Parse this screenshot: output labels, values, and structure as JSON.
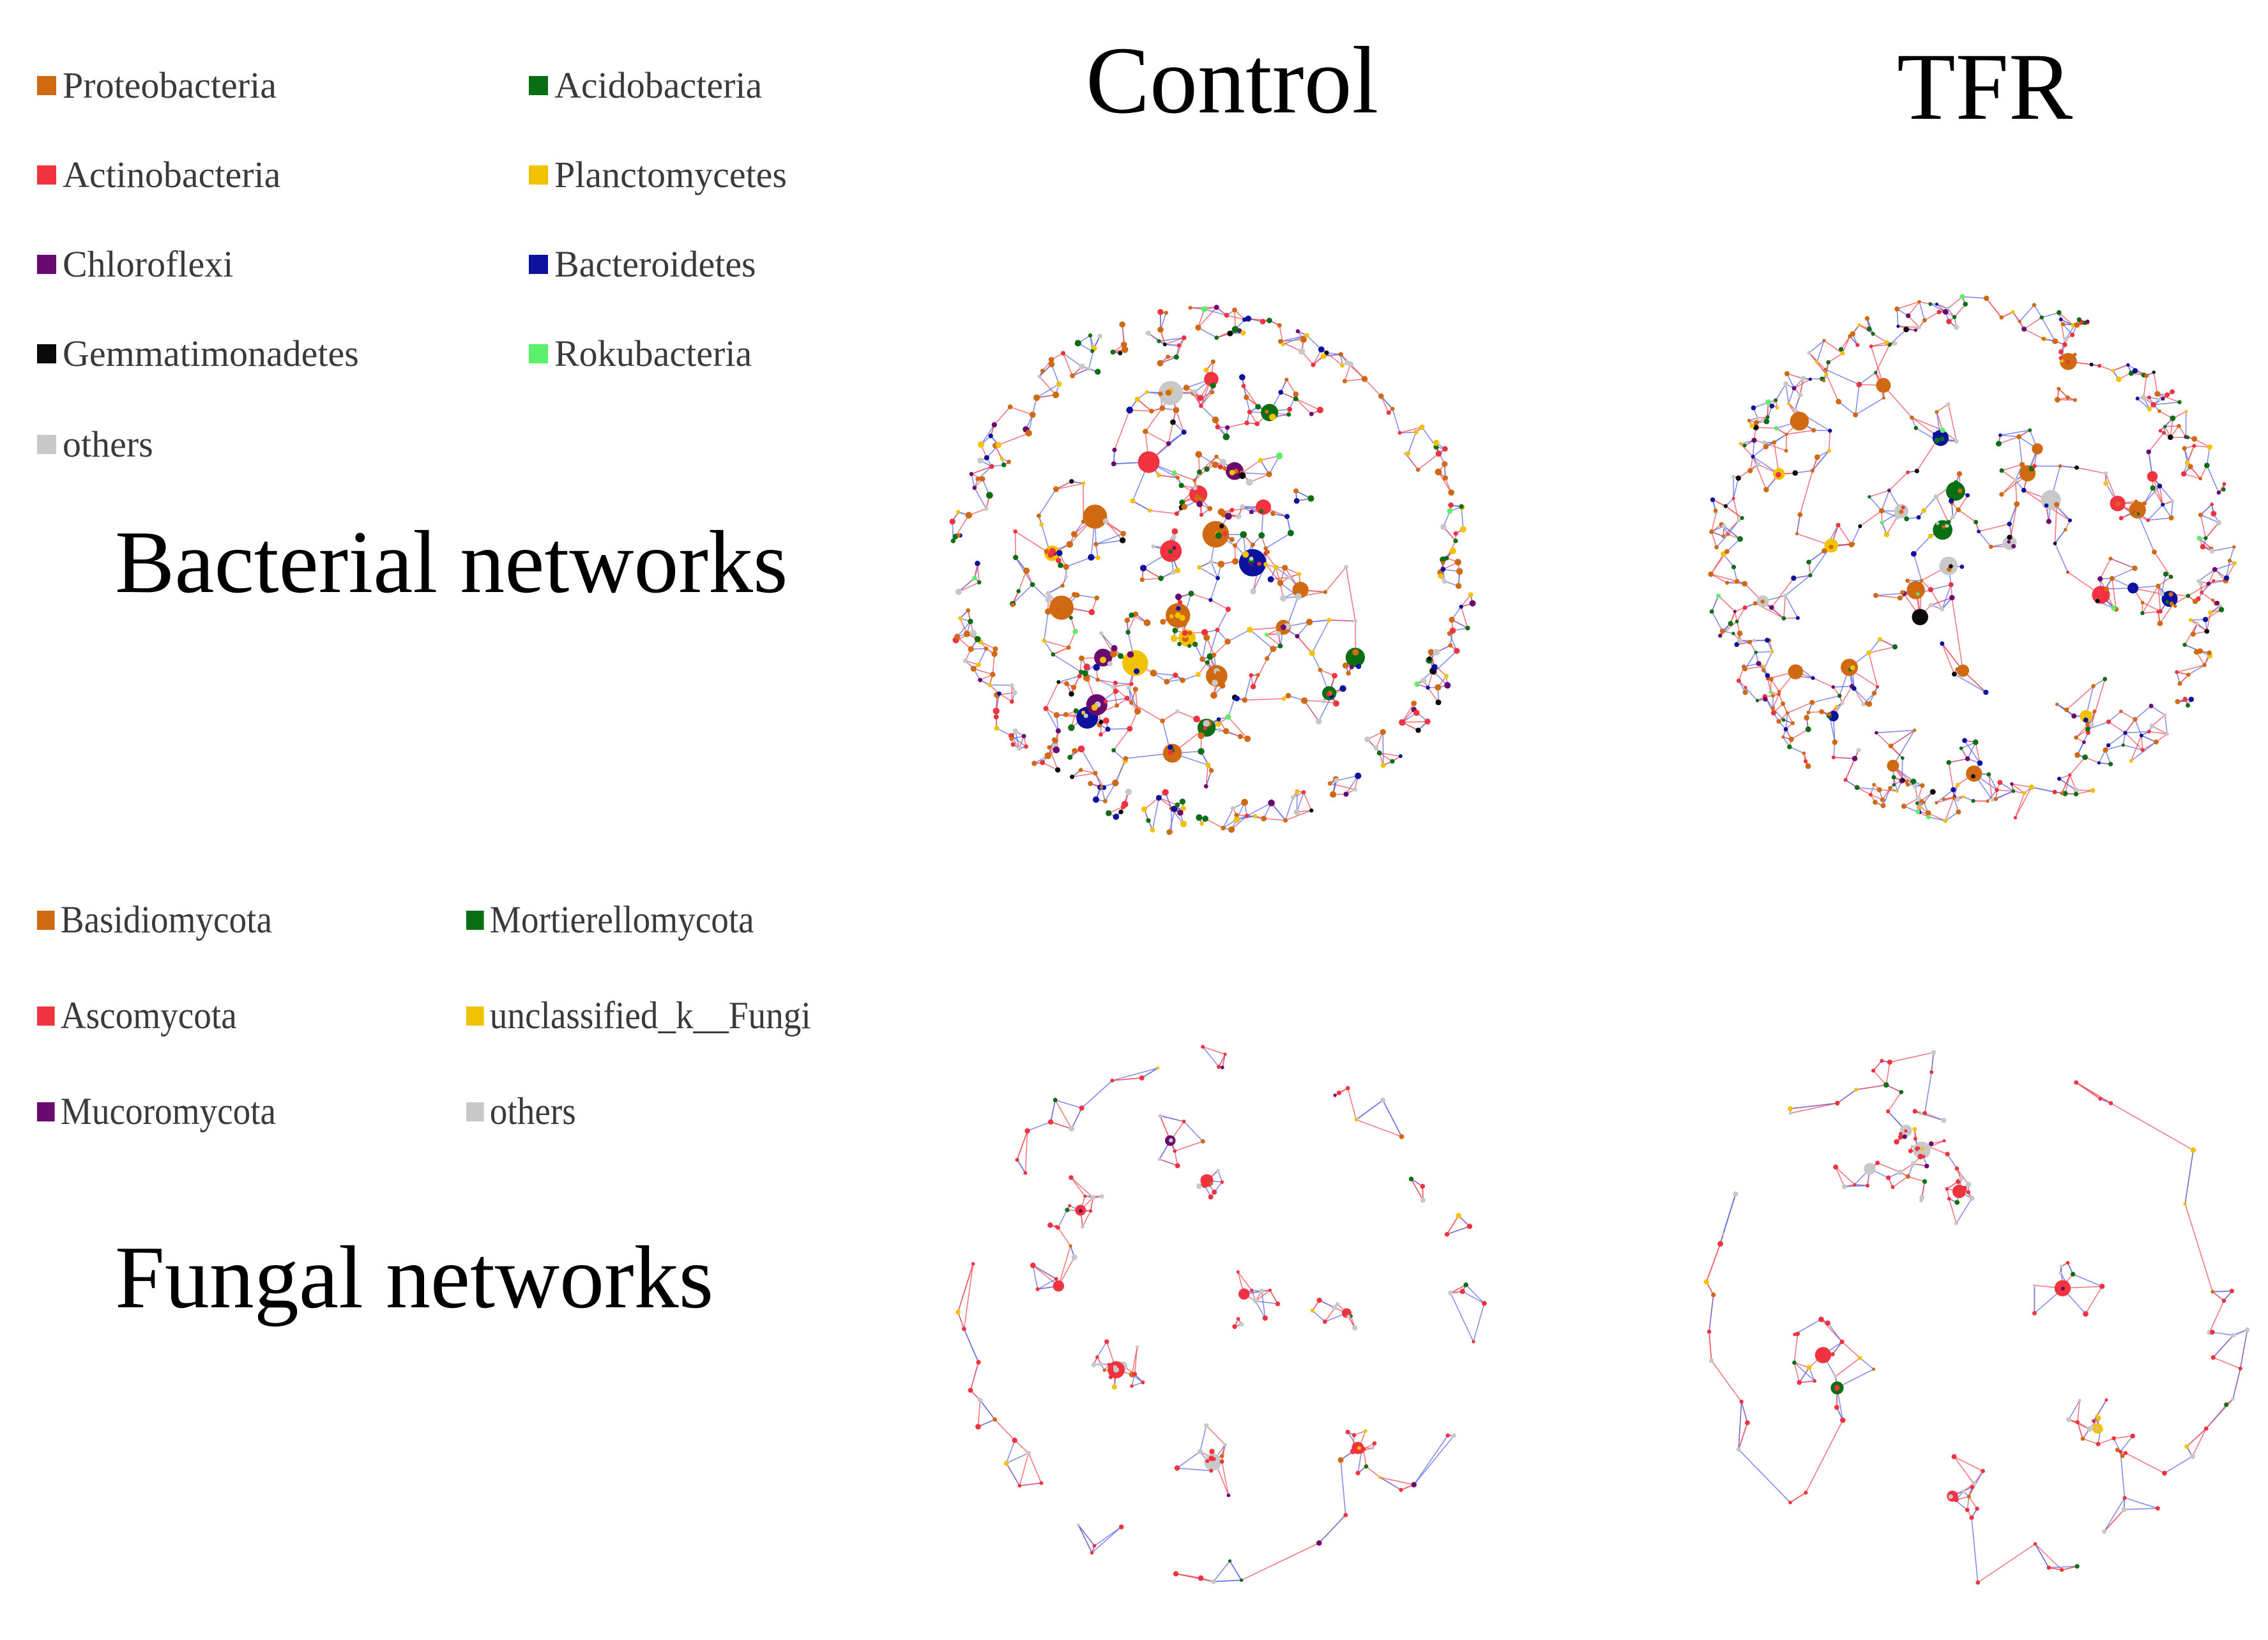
{
  "columns": {
    "control": "Control",
    "tfr": "TFR"
  },
  "sections": {
    "bacterial": "Bacterial networks",
    "fungal": "Fungal networks"
  },
  "edge_colors": {
    "positive": "#ef4b55",
    "negative": "#5b67e6"
  },
  "bacterial_legend": [
    {
      "label": "Proteobacteria",
      "color": "#d06a12"
    },
    {
      "label": "Acidobacteria",
      "color": "#0a6e12"
    },
    {
      "label": "Actinobacteria",
      "color": "#f0333f"
    },
    {
      "label": "Planctomycetes",
      "color": "#f2c200"
    },
    {
      "label": "Chloroflexi",
      "color": "#6a0a6e"
    },
    {
      "label": "Bacteroidetes",
      "color": "#0c129e"
    },
    {
      "label": "Gemmatimonadetes",
      "color": "#0a0a0a"
    },
    {
      "label": "Rokubacteria",
      "color": "#5cf06a"
    },
    {
      "label": "others",
      "color": "#c8c8c8"
    }
  ],
  "fungal_legend": [
    {
      "label": "Basidiomycota",
      "color": "#d06a12"
    },
    {
      "label": "Mortierellomycota",
      "color": "#0a6e12"
    },
    {
      "label": "Ascomycota",
      "color": "#f0333f"
    },
    {
      "label": "unclassified_k__Fungi",
      "color": "#f2c200"
    },
    {
      "label": "Mucoromycota",
      "color": "#6a0a6e"
    },
    {
      "label": "others",
      "color": "#c8c8c8"
    }
  ]
}
